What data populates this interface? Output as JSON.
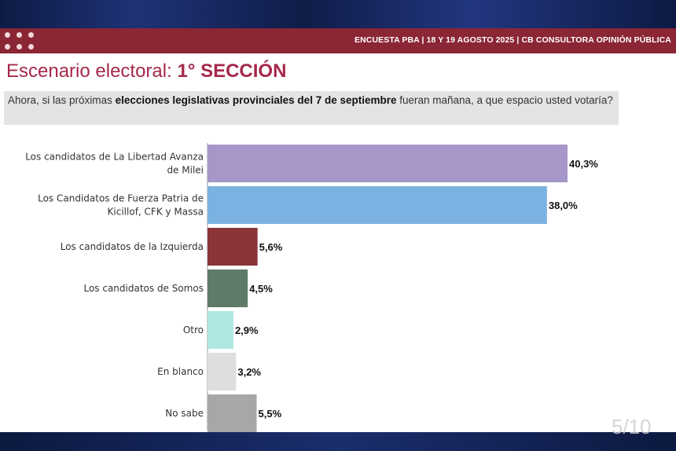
{
  "header": {
    "text": "ENCUESTA PBA | 18 Y 19  AGOSTO 2025 | CB CONSULTORA OPINIÓN PÚBLICA"
  },
  "title": {
    "prefix": "Escenario electoral: ",
    "bold": "1° SECCIÓN"
  },
  "question": {
    "part1": "Ahora, si las próximas ",
    "bold": "elecciones legislativas provinciales del 7 de septiembre",
    "part2": " fueran mañana, a que espacio usted votaría?"
  },
  "page_number": "5/10",
  "chart_data": {
    "type": "bar",
    "orientation": "horizontal",
    "categories": [
      [
        "Los candidatos de La Libertad Avanza",
        "de Milei"
      ],
      [
        "Los Candidatos de Fuerza Patria de",
        "Kicillof, CFK y Massa"
      ],
      [
        "Los candidatos de la Izquierda"
      ],
      [
        "Los candidatos de Somos"
      ],
      [
        "Otro"
      ],
      [
        "En blanco"
      ],
      [
        "No sabe"
      ]
    ],
    "values": [
      40.3,
      38.0,
      5.6,
      4.5,
      2.9,
      3.2,
      5.5
    ],
    "value_labels": [
      "40,3%",
      "38,0%",
      "5,6%",
      "4,5%",
      "2,9%",
      "3,2%",
      "5,5%"
    ],
    "colors": [
      "#a797c8",
      "#7bb2e1",
      "#8a3438",
      "#5f7a68",
      "#aee8e1",
      "#dededf",
      "#a7a7a7"
    ],
    "xlim": [
      0,
      40.3
    ],
    "grid": false,
    "legend": "none"
  }
}
